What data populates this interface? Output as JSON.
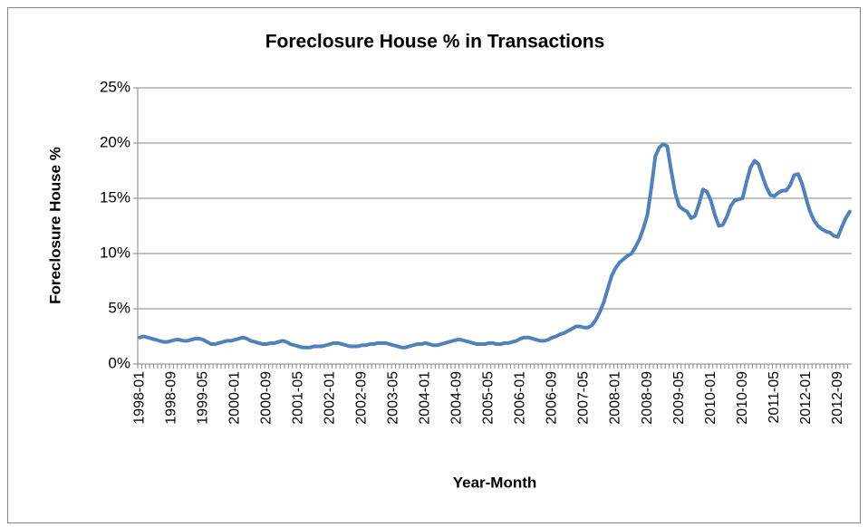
{
  "chart_data": {
    "type": "line",
    "title": "Foreclosure House % in Transactions",
    "x_label": "Year-Month",
    "y_label": "Foreclosure House %",
    "categories": [
      "1998-01",
      null,
      null,
      null,
      null,
      null,
      null,
      null,
      "1998-09",
      null,
      null,
      null,
      null,
      null,
      null,
      null,
      "1999-05",
      null,
      null,
      null,
      null,
      null,
      null,
      null,
      "2000-01",
      null,
      null,
      null,
      null,
      null,
      null,
      null,
      "2000-09",
      null,
      null,
      null,
      null,
      null,
      null,
      null,
      "2001-05",
      null,
      null,
      null,
      null,
      null,
      null,
      null,
      "2002-01",
      null,
      null,
      null,
      null,
      null,
      null,
      null,
      "2002-09",
      null,
      null,
      null,
      null,
      null,
      null,
      null,
      "2003-05",
      null,
      null,
      null,
      null,
      null,
      null,
      null,
      "2004-01",
      null,
      null,
      null,
      null,
      null,
      null,
      null,
      "2004-09",
      null,
      null,
      null,
      null,
      null,
      null,
      null,
      "2005-05",
      null,
      null,
      null,
      null,
      null,
      null,
      null,
      "2006-01",
      null,
      null,
      null,
      null,
      null,
      null,
      null,
      "2006-09",
      null,
      null,
      null,
      null,
      null,
      null,
      null,
      "2007-05",
      null,
      null,
      null,
      null,
      null,
      null,
      null,
      "2008-01",
      null,
      null,
      null,
      null,
      null,
      null,
      null,
      "2008-09",
      null,
      null,
      null,
      null,
      null,
      null,
      null,
      "2009-05",
      null,
      null,
      null,
      null,
      null,
      null,
      null,
      "2010-01",
      null,
      null,
      null,
      null,
      null,
      null,
      null,
      "2010-09",
      null,
      null,
      null,
      null,
      null,
      null,
      null,
      "2011-05",
      null,
      null,
      null,
      null,
      null,
      null,
      null,
      "2012-01",
      null,
      null,
      null,
      null,
      null,
      null,
      null,
      "2012-09",
      null,
      null,
      null
    ],
    "series": [
      {
        "name": "Foreclosure House %",
        "color": "#4f81bd",
        "values": [
          2.4,
          2.5,
          2.4,
          2.3,
          2.2,
          2.1,
          2.0,
          2.0,
          2.1,
          2.2,
          2.2,
          2.1,
          2.1,
          2.2,
          2.3,
          2.3,
          2.2,
          2.0,
          1.8,
          1.8,
          1.9,
          2.0,
          2.1,
          2.1,
          2.2,
          2.3,
          2.4,
          2.3,
          2.1,
          2.0,
          1.9,
          1.8,
          1.8,
          1.9,
          1.9,
          2.0,
          2.1,
          2.0,
          1.8,
          1.7,
          1.6,
          1.5,
          1.5,
          1.5,
          1.6,
          1.6,
          1.6,
          1.7,
          1.8,
          1.9,
          1.9,
          1.8,
          1.7,
          1.6,
          1.6,
          1.6,
          1.7,
          1.7,
          1.8,
          1.8,
          1.9,
          1.9,
          1.9,
          1.8,
          1.7,
          1.6,
          1.5,
          1.5,
          1.6,
          1.7,
          1.8,
          1.8,
          1.9,
          1.8,
          1.7,
          1.7,
          1.8,
          1.9,
          2.0,
          2.1,
          2.2,
          2.2,
          2.1,
          2.0,
          1.9,
          1.8,
          1.8,
          1.8,
          1.9,
          1.9,
          1.8,
          1.8,
          1.9,
          1.9,
          2.0,
          2.1,
          2.3,
          2.4,
          2.4,
          2.3,
          2.2,
          2.1,
          2.1,
          2.2,
          2.4,
          2.5,
          2.7,
          2.8,
          3.0,
          3.2,
          3.4,
          3.4,
          3.3,
          3.3,
          3.5,
          4.0,
          4.7,
          5.6,
          6.8,
          8.0,
          8.7,
          9.2,
          9.5,
          9.8,
          10.0,
          10.6,
          11.3,
          12.3,
          13.5,
          16.0,
          18.8,
          19.6,
          19.9,
          19.7,
          17.5,
          15.5,
          14.3,
          14.0,
          13.8,
          13.2,
          13.4,
          14.5,
          15.8,
          15.6,
          14.8,
          13.5,
          12.5,
          12.6,
          13.3,
          14.3,
          14.8,
          14.9,
          15.0,
          16.5,
          17.8,
          18.4,
          18.1,
          17.0,
          16.0,
          15.3,
          15.2,
          15.5,
          15.7,
          15.7,
          16.2,
          17.1,
          17.2,
          16.3,
          15.0,
          13.8,
          13.0,
          12.5,
          12.2,
          12.0,
          11.9,
          11.6,
          11.5,
          12.4,
          13.2,
          13.8
        ]
      }
    ],
    "ylim": [
      0,
      25
    ],
    "yticks": [
      {
        "value": 0,
        "label": "0%"
      },
      {
        "value": 5,
        "label": "5%"
      },
      {
        "value": 10,
        "label": "10%"
      },
      {
        "value": 15,
        "label": "15%"
      },
      {
        "value": 20,
        "label": "20%"
      },
      {
        "value": 25,
        "label": "25%"
      }
    ],
    "grid": true
  }
}
